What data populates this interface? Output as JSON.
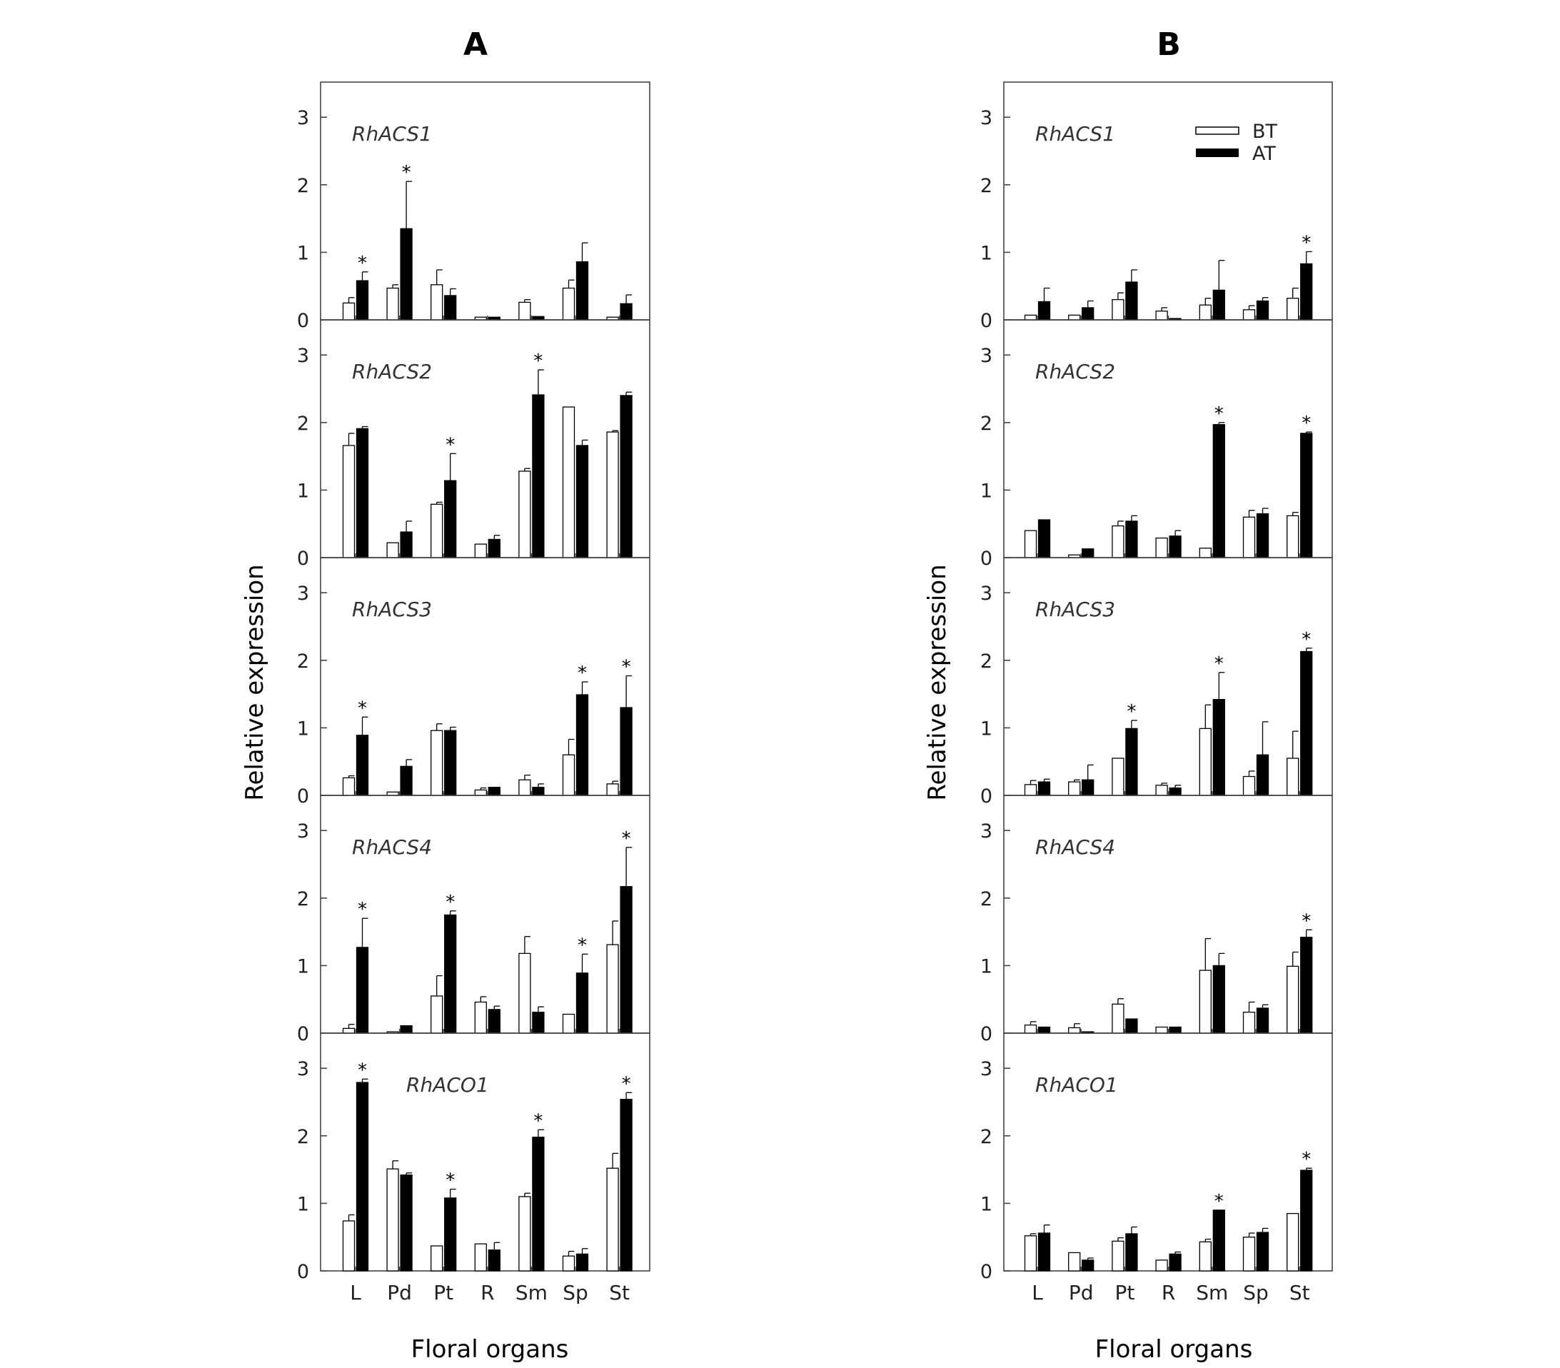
{
  "figure": {
    "y_axis_label": "Relative expression",
    "x_axis_label": "Floral organs",
    "legend": [
      {
        "name": "BT",
        "fill": "#ffffff"
      },
      {
        "name": "AT",
        "fill": "#000000"
      }
    ],
    "significance_mark": "*"
  },
  "chart_data": [
    {
      "panel": "A",
      "type": "bar",
      "xlabel": "Floral organs",
      "ylabel": "Relative expression",
      "categories": [
        "L",
        "Pd",
        "Pt",
        "R",
        "Sm",
        "Sp",
        "St"
      ],
      "ylim": [
        0,
        3.5
      ],
      "yticks": [
        0,
        1,
        2,
        3
      ],
      "subplots": [
        {
          "gene": "RhACS1",
          "BT": [
            0.25,
            0.47,
            0.52,
            0.04,
            0.26,
            0.47,
            0.04
          ],
          "BT_err": [
            0.08,
            0.05,
            0.22,
            0.0,
            0.04,
            0.12,
            0.0
          ],
          "AT": [
            0.58,
            1.35,
            0.36,
            0.04,
            0.05,
            0.86,
            0.24
          ],
          "AT_err": [
            0.13,
            0.7,
            0.1,
            0.0,
            0.0,
            0.28,
            0.13
          ],
          "sig": [
            true,
            true,
            false,
            false,
            false,
            false,
            false
          ]
        },
        {
          "gene": "RhACS2",
          "BT": [
            1.66,
            0.22,
            0.79,
            0.2,
            1.28,
            2.23,
            1.86
          ],
          "BT_err": [
            0.18,
            0.0,
            0.03,
            0.0,
            0.04,
            0.0,
            0.02
          ],
          "AT": [
            1.91,
            0.38,
            1.14,
            0.27,
            2.41,
            1.66,
            2.4
          ],
          "AT_err": [
            0.03,
            0.16,
            0.4,
            0.06,
            0.37,
            0.08,
            0.05
          ],
          "sig": [
            false,
            false,
            true,
            false,
            true,
            false,
            false
          ]
        },
        {
          "gene": "RhACS3",
          "BT": [
            0.26,
            0.05,
            0.96,
            0.08,
            0.23,
            0.6,
            0.17
          ],
          "BT_err": [
            0.03,
            0.0,
            0.1,
            0.03,
            0.07,
            0.23,
            0.04
          ],
          "AT": [
            0.89,
            0.43,
            0.96,
            0.12,
            0.12,
            1.49,
            1.3
          ],
          "AT_err": [
            0.27,
            0.1,
            0.05,
            0.0,
            0.05,
            0.19,
            0.47
          ],
          "sig": [
            true,
            false,
            false,
            false,
            false,
            true,
            true
          ]
        },
        {
          "gene": "RhACS4",
          "BT": [
            0.07,
            0.02,
            0.55,
            0.46,
            1.18,
            0.28,
            1.31
          ],
          "BT_err": [
            0.06,
            0.0,
            0.3,
            0.08,
            0.25,
            0.0,
            0.35
          ],
          "AT": [
            1.27,
            0.11,
            1.75,
            0.35,
            0.31,
            0.89,
            2.17
          ],
          "AT_err": [
            0.43,
            0.0,
            0.06,
            0.05,
            0.08,
            0.28,
            0.58
          ],
          "sig": [
            true,
            false,
            true,
            false,
            false,
            true,
            true
          ]
        },
        {
          "gene": "RhACO1",
          "BT": [
            0.74,
            1.51,
            0.37,
            0.4,
            1.1,
            0.22,
            1.52
          ],
          "BT_err": [
            0.09,
            0.12,
            0.0,
            0.0,
            0.05,
            0.07,
            0.22
          ],
          "AT": [
            2.79,
            1.42,
            1.08,
            0.31,
            1.98,
            0.25,
            2.54
          ],
          "AT_err": [
            0.05,
            0.03,
            0.13,
            0.11,
            0.11,
            0.08,
            0.1
          ],
          "sig": [
            true,
            false,
            true,
            false,
            true,
            false,
            true
          ]
        }
      ]
    },
    {
      "panel": "B",
      "type": "bar",
      "xlabel": "Floral organs",
      "ylabel": "Relative expression",
      "categories": [
        "L",
        "Pd",
        "Pt",
        "R",
        "Sm",
        "Sp",
        "St"
      ],
      "ylim": [
        0,
        3.5
      ],
      "yticks": [
        0,
        1,
        2,
        3
      ],
      "legend_subplot": 0,
      "subplots": [
        {
          "gene": "RhACS1",
          "BT": [
            0.07,
            0.07,
            0.3,
            0.13,
            0.22,
            0.15,
            0.32
          ],
          "BT_err": [
            0.0,
            0.0,
            0.1,
            0.05,
            0.1,
            0.06,
            0.15
          ],
          "AT": [
            0.27,
            0.18,
            0.56,
            0.02,
            0.44,
            0.28,
            0.83
          ],
          "AT_err": [
            0.2,
            0.1,
            0.18,
            0.0,
            0.44,
            0.05,
            0.18
          ],
          "sig": [
            false,
            false,
            false,
            false,
            false,
            false,
            true
          ]
        },
        {
          "gene": "RhACS2",
          "BT": [
            0.4,
            0.04,
            0.47,
            0.29,
            0.14,
            0.6,
            0.62
          ],
          "BT_err": [
            0.0,
            0.0,
            0.07,
            0.0,
            0.0,
            0.1,
            0.05
          ],
          "AT": [
            0.56,
            0.13,
            0.54,
            0.32,
            1.97,
            0.65,
            1.84
          ],
          "AT_err": [
            0.0,
            0.0,
            0.08,
            0.08,
            0.03,
            0.08,
            0.02
          ],
          "sig": [
            false,
            false,
            false,
            false,
            true,
            false,
            true
          ]
        },
        {
          "gene": "RhACS3",
          "BT": [
            0.16,
            0.2,
            0.55,
            0.15,
            0.99,
            0.28,
            0.55
          ],
          "BT_err": [
            0.06,
            0.03,
            0.0,
            0.03,
            0.35,
            0.08,
            0.4
          ],
          "AT": [
            0.2,
            0.23,
            0.99,
            0.11,
            1.42,
            0.6,
            2.13
          ],
          "AT_err": [
            0.04,
            0.22,
            0.12,
            0.04,
            0.4,
            0.49,
            0.05
          ],
          "sig": [
            false,
            false,
            true,
            false,
            true,
            false,
            true
          ]
        },
        {
          "gene": "RhACS4",
          "BT": [
            0.12,
            0.08,
            0.43,
            0.09,
            0.93,
            0.31,
            0.99
          ],
          "BT_err": [
            0.05,
            0.06,
            0.08,
            0.0,
            0.47,
            0.15,
            0.21
          ],
          "AT": [
            0.09,
            0.02,
            0.21,
            0.09,
            1.0,
            0.37,
            1.42
          ],
          "AT_err": [
            0.0,
            0.0,
            0.0,
            0.0,
            0.18,
            0.05,
            0.11
          ],
          "sig": [
            false,
            false,
            false,
            false,
            false,
            false,
            true
          ]
        },
        {
          "gene": "RhACO1",
          "BT": [
            0.52,
            0.27,
            0.44,
            0.16,
            0.43,
            0.5,
            0.85
          ],
          "BT_err": [
            0.03,
            0.0,
            0.05,
            0.0,
            0.04,
            0.06,
            0.0
          ],
          "AT": [
            0.56,
            0.16,
            0.55,
            0.25,
            0.9,
            0.57,
            1.49
          ],
          "AT_err": [
            0.12,
            0.03,
            0.1,
            0.03,
            0.0,
            0.06,
            0.03
          ],
          "sig": [
            false,
            false,
            false,
            false,
            true,
            false,
            true
          ]
        }
      ]
    }
  ]
}
